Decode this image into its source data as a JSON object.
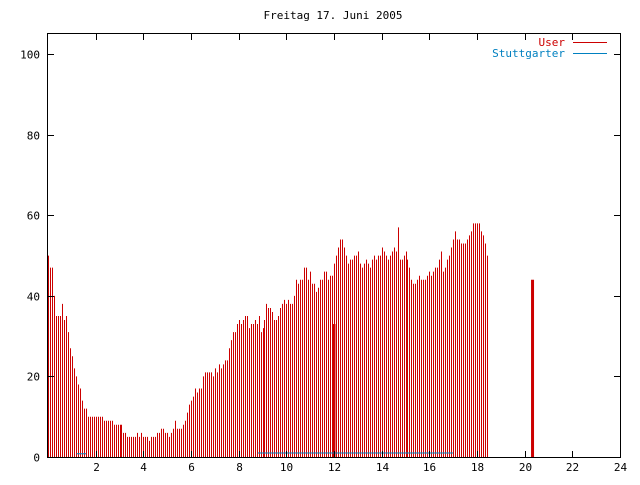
{
  "chart_data": {
    "type": "bar",
    "title": "Freitag 17. Juni 2005",
    "xlabel": "",
    "ylabel": "",
    "xlim": [
      0,
      24
    ],
    "ylim": [
      0,
      105
    ],
    "x_ticks": [
      2,
      4,
      6,
      8,
      10,
      12,
      14,
      16,
      18,
      20,
      22,
      24
    ],
    "y_ticks": [
      0,
      20,
      40,
      60,
      80,
      100
    ],
    "grid": false,
    "legend_position": "top-right",
    "interval_minutes": 5,
    "series": [
      {
        "name": "User",
        "color": "#cc0000",
        "values": [
          50,
          47,
          47,
          40,
          35,
          35,
          35,
          38,
          34,
          35,
          31,
          27,
          25,
          22,
          20,
          18,
          17,
          14,
          12,
          12,
          10,
          10,
          10,
          10,
          10,
          10,
          10,
          10,
          9,
          9,
          9,
          9,
          9,
          8,
          8,
          8,
          8,
          8,
          6,
          6,
          5,
          5,
          5,
          5,
          5,
          6,
          5,
          6,
          5,
          5,
          5,
          4,
          5,
          5,
          5,
          6,
          6,
          7,
          7,
          6,
          6,
          5,
          6,
          7,
          9,
          7,
          7,
          7,
          8,
          9,
          11,
          13,
          14,
          15,
          17,
          16,
          17,
          17,
          20,
          21,
          21,
          21,
          21,
          20,
          22,
          21,
          23,
          22,
          23,
          24,
          24,
          27,
          29,
          31,
          31,
          33,
          34,
          33,
          34,
          35,
          35,
          32,
          33,
          33,
          34,
          33,
          35,
          31,
          32,
          34,
          38,
          37,
          37,
          36,
          34,
          34,
          35,
          37,
          38,
          39,
          38,
          39,
          38,
          38,
          40,
          44,
          43,
          44,
          44,
          47,
          47,
          44,
          46,
          43,
          43,
          41,
          42,
          44,
          44,
          46,
          46,
          44,
          45,
          45,
          48,
          50,
          52,
          54,
          54,
          52,
          50,
          48,
          49,
          49,
          50,
          50,
          51,
          48,
          47,
          48,
          49,
          48,
          47,
          49,
          50,
          49,
          50,
          50,
          52,
          51,
          50,
          49,
          50,
          51,
          52,
          51,
          57,
          49,
          49,
          50,
          51,
          49,
          47,
          44,
          43,
          43,
          44,
          45,
          44,
          44,
          44,
          45,
          46,
          45,
          46,
          47,
          47,
          49,
          51,
          46,
          47,
          49,
          50,
          52,
          54,
          56,
          54,
          54,
          53,
          53,
          53,
          54,
          55,
          56,
          58,
          58,
          58,
          58,
          56,
          55,
          53,
          50
        ],
        "highlight_bars": [
          {
            "x": 12.0,
            "value": 33
          },
          {
            "x": 20.33,
            "value": 44
          }
        ]
      },
      {
        "name": "Stuttgarter",
        "color": "#0080c0",
        "segments": [
          {
            "x": [
              1.2,
              1.6
            ],
            "value": 0.8
          },
          {
            "x": [
              8.8,
              17.0
            ],
            "value": 1.0
          }
        ]
      }
    ]
  }
}
